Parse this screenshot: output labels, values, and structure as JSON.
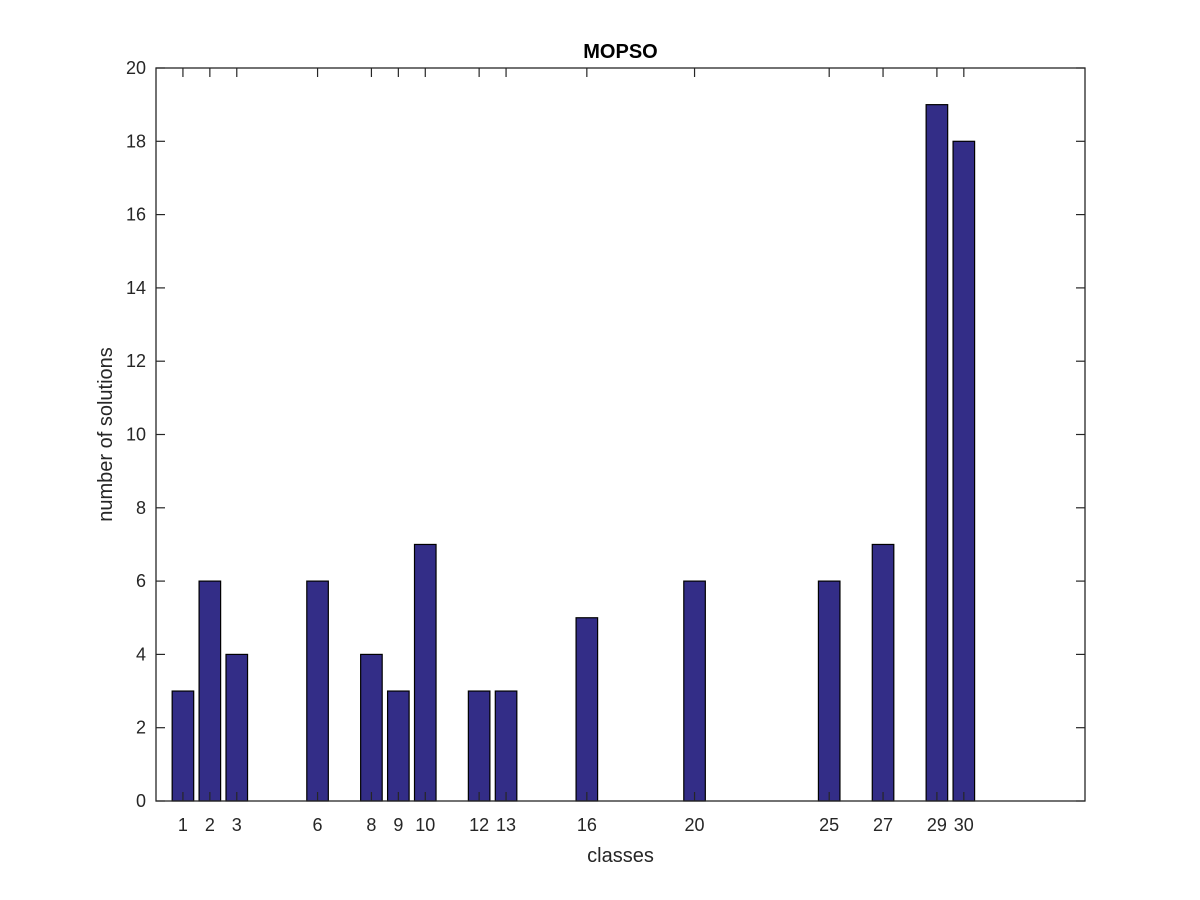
{
  "chart_data": {
    "type": "bar",
    "title": "MOPSO",
    "xlabel": "classes",
    "ylabel": "number of solutions",
    "x": [
      1,
      2,
      3,
      6,
      8,
      9,
      10,
      12,
      13,
      16,
      20,
      25,
      27,
      29,
      30
    ],
    "values": [
      3,
      6,
      4,
      6,
      4,
      3,
      7,
      3,
      3,
      5,
      6,
      6,
      7,
      19,
      18
    ],
    "xticks": [
      "1",
      "2",
      "3",
      "6",
      "8",
      "9",
      "10",
      "12",
      "13",
      "16",
      "20",
      "25",
      "27",
      "29",
      "30"
    ],
    "xlim": [
      0,
      34.5
    ],
    "ylim": [
      0,
      20
    ],
    "yticks": [
      0,
      2,
      4,
      6,
      8,
      10,
      12,
      14,
      16,
      18,
      20
    ],
    "grid": false,
    "bar_width": 0.8,
    "bar_color": "#332d87",
    "edge_color": "#000000",
    "axis_color": "#262626"
  }
}
